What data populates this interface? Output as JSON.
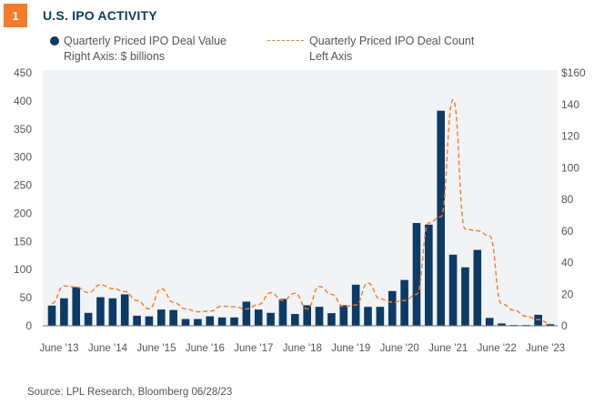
{
  "header": {
    "badge": "1",
    "title": "U.S. IPO ACTIVITY"
  },
  "legend": {
    "value_line1": "Quarterly Priced IPO Deal Value",
    "value_line2": "Right Axis: $ billions",
    "count_line1": "Quarterly Priced IPO Deal Count",
    "count_line2": "Left Axis"
  },
  "source": "Source: LPL Research, Bloomberg  06/28/23",
  "colors": {
    "bar": "#0d3b66",
    "line": "#f47b2a",
    "plot_bg": "#f1f3f5"
  },
  "chart_data": {
    "type": "bar+line",
    "title": "U.S. IPO ACTIVITY",
    "x_tick_labels": [
      "June '13",
      "June '14",
      "June '15",
      "June '16",
      "June '17",
      "June '18",
      "June '19",
      "June '20",
      "June '21",
      "June '22",
      "June '23"
    ],
    "left_axis": {
      "label": "Deal Count",
      "ylim": [
        0,
        450
      ],
      "ticks": [
        "0",
        "50",
        "100",
        "150",
        "200",
        "250",
        "300",
        "350",
        "400",
        "450"
      ]
    },
    "right_axis": {
      "label": "$ billions",
      "ylim": [
        0,
        160
      ],
      "ticks": [
        "0",
        "20",
        "40",
        "60",
        "80",
        "100",
        "120",
        "140",
        "$160"
      ]
    },
    "series": [
      {
        "name": "Quarterly Priced IPO Deal Value",
        "axis": "right",
        "type": "bar",
        "values": [
          12.8,
          17.4,
          24.5,
          8.2,
          18.1,
          17.4,
          19.9,
          6.4,
          6,
          10.3,
          10,
          4.3,
          4.3,
          6,
          5.3,
          5.3,
          15.3,
          10.3,
          8.2,
          17,
          7.5,
          13,
          12,
          8,
          13,
          26,
          12,
          12,
          22,
          29,
          65,
          64,
          136,
          45,
          37,
          48,
          5,
          1.5,
          0.5,
          0.5,
          7,
          1
        ]
      },
      {
        "name": "Quarterly Priced IPO Deal Count",
        "axis": "left",
        "type": "line",
        "style": "dashed",
        "values": [
          40,
          71,
          69,
          59,
          73,
          66,
          61,
          45,
          30,
          66,
          42,
          30,
          25,
          26,
          35,
          34,
          30,
          38,
          59,
          45,
          58,
          30,
          70,
          56,
          34,
          37,
          76,
          48,
          42,
          45,
          56,
          183,
          194,
          402,
          172,
          169,
          160,
          39,
          28,
          17,
          11,
          4
        ]
      }
    ]
  }
}
